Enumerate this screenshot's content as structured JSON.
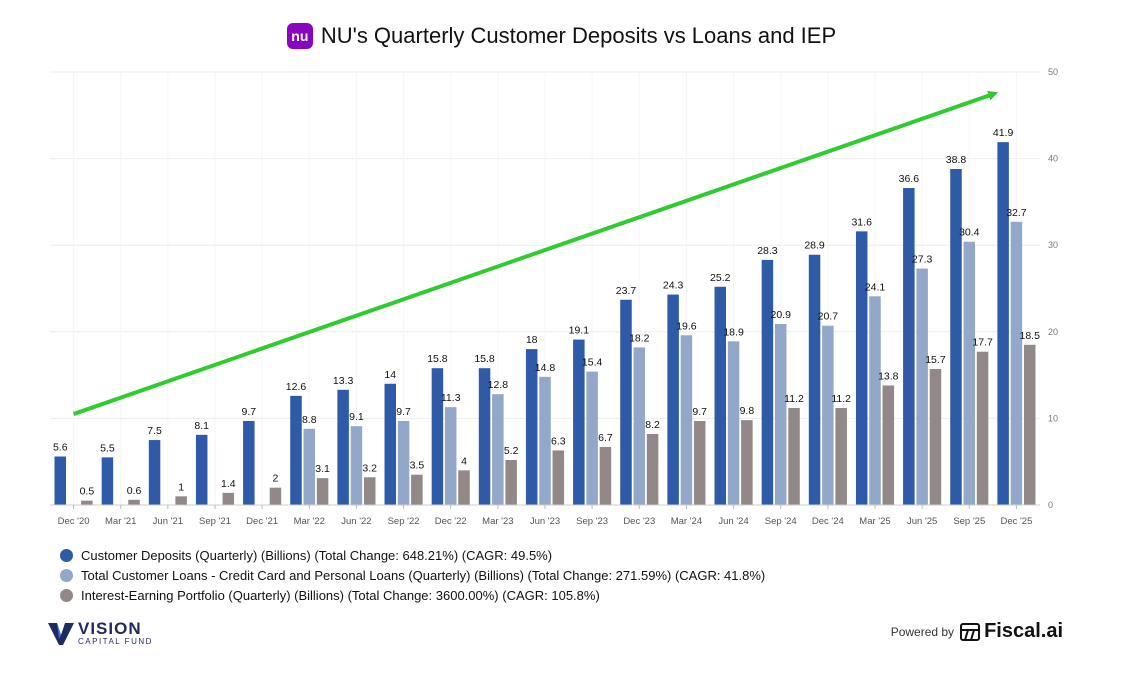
{
  "title": {
    "logo_text": "nu",
    "text": "NU's Quarterly Customer Deposits vs Loans and IEP"
  },
  "colors": {
    "deposits": "#2f5aa8",
    "loans": "#93a8c9",
    "iep": "#918887",
    "arrow": "#2ecc2e",
    "grid": "#eeeeee"
  },
  "chart_data": {
    "type": "bar",
    "categories": [
      "Dec '20",
      "Mar '21",
      "Jun '21",
      "Sep '21",
      "Dec '21",
      "Mar '22",
      "Jun '22",
      "Sep '22",
      "Dec '22",
      "Mar '23",
      "Jun '23",
      "Sep '23",
      "Dec '23",
      "Mar '24",
      "Jun '24",
      "Sep '24",
      "Dec '24",
      "Mar '25",
      "Jun '25",
      "Sep '25",
      "Dec '25"
    ],
    "series": [
      {
        "name": "Customer Deposits (Quarterly) (Billions) (Total Change: 648.21%) (CAGR: 49.5%)",
        "values": [
          5.6,
          5.5,
          7.5,
          8.1,
          9.7,
          12.6,
          13.3,
          14,
          15.8,
          15.8,
          18,
          19.1,
          23.7,
          24.3,
          25.2,
          28.3,
          28.9,
          31.6,
          36.6,
          38.8,
          41.9
        ]
      },
      {
        "name": "Total Customer Loans - Credit Card and Personal Loans (Quarterly) (Billions) (Total Change: 271.59%) (CAGR: 41.8%)",
        "values": [
          null,
          null,
          null,
          null,
          null,
          8.8,
          9.1,
          9.7,
          11.3,
          12.8,
          14.8,
          15.4,
          18.2,
          19.6,
          18.9,
          20.9,
          20.7,
          24.1,
          27.3,
          30.4,
          32.7
        ]
      },
      {
        "name": "Interest-Earning Portfolio (Quarterly) (Billions) (Total Change: 3600.00%) (CAGR: 105.8%)",
        "values": [
          0.5,
          0.6,
          1,
          1.4,
          2,
          3.1,
          3.2,
          3.5,
          4,
          5.2,
          6.3,
          6.7,
          8.2,
          9.7,
          9.8,
          11.2,
          11.2,
          13.8,
          15.7,
          17.7,
          18.5
        ]
      }
    ],
    "ylim": [
      0,
      50
    ],
    "yticks": [
      0,
      10,
      20,
      30,
      40,
      50
    ],
    "y_axis_side": "right",
    "grid": true,
    "legend_position": "bottom-left",
    "trend_arrow": {
      "from": [
        "Dec '20",
        10.5
      ],
      "to": [
        "Dec '25",
        47.5
      ]
    }
  },
  "legend": [
    {
      "label": "Customer Deposits (Quarterly) (Billions) (Total Change: 648.21%) (CAGR: 49.5%)"
    },
    {
      "label": "Total Customer Loans - Credit Card and Personal Loans (Quarterly) (Billions) (Total Change: 271.59%) (CAGR: 41.8%)"
    },
    {
      "label": "Interest-Earning Portfolio (Quarterly) (Billions) (Total Change: 3600.00%) (CAGR: 105.8%)"
    }
  ],
  "footer": {
    "vision_name": "VISION",
    "vision_sub": "CAPITAL FUND",
    "powered_label": "Powered by",
    "fiscal_name": "Fiscal.ai"
  }
}
